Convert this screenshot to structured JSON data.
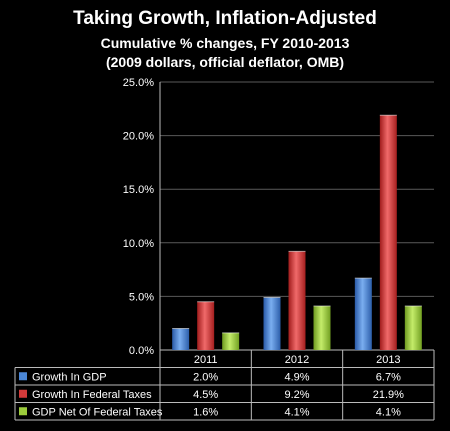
{
  "chart_data": {
    "type": "bar",
    "title": "Taking Growth, Inflation-Adjusted",
    "subtitle": "Cumulative % changes, FY 2010-2013",
    "subtitle2": "(2009 dollars, official deflator, OMB)",
    "categories": [
      "2011",
      "2012",
      "2013"
    ],
    "ylim": [
      0,
      25
    ],
    "yticks": [
      "0.0%",
      "5.0%",
      "10.0%",
      "15.0%",
      "20.0%",
      "25.0%"
    ],
    "grid": true,
    "legend": "data-table-below",
    "series": [
      {
        "name": "Growth In GDP",
        "values": [
          2.0,
          4.9,
          6.7
        ],
        "labels": [
          "2.0%",
          "4.9%",
          "6.7%"
        ],
        "color": "#4a86d6"
      },
      {
        "name": "Growth In Federal Taxes",
        "values": [
          4.5,
          9.2,
          21.9
        ],
        "labels": [
          "4.5%",
          "9.2%",
          "21.9%"
        ],
        "color": "#d23a3a"
      },
      {
        "name": "GDP Net Of Federal Taxes",
        "values": [
          1.6,
          4.1,
          4.1
        ],
        "labels": [
          "1.6%",
          "4.1%",
          "4.1%"
        ],
        "color": "#9ccc3c"
      }
    ]
  }
}
